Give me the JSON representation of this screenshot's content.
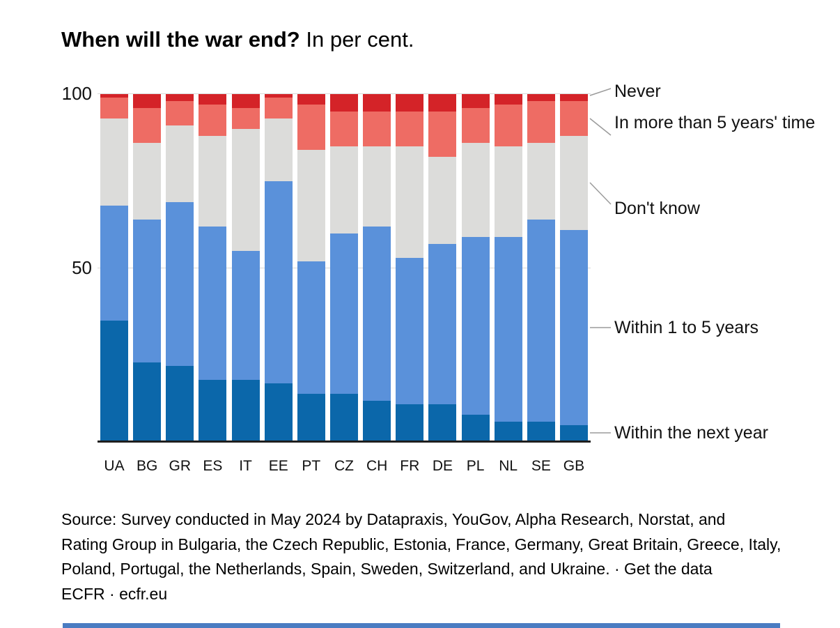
{
  "title": {
    "bold": "When will the war end?",
    "regular": " In per cent."
  },
  "y_axis_labels": {
    "tick100": "100",
    "tick50": "50"
  },
  "chart_data": {
    "type": "bar",
    "stacked": true,
    "title": "When will the war end? In per cent.",
    "ylabel": "per cent",
    "ylim": [
      0,
      100
    ],
    "y_ticks": [
      50,
      100
    ],
    "grid": true,
    "legend_position": "right-annotations",
    "categories": [
      "UA",
      "BG",
      "GR",
      "ES",
      "IT",
      "EE",
      "PT",
      "CZ",
      "CH",
      "FR",
      "DE",
      "PL",
      "NL",
      "SE",
      "GB"
    ],
    "series": [
      {
        "name": "Within the next year",
        "color": "#0b67aa",
        "values": [
          35,
          23,
          22,
          18,
          18,
          17,
          14,
          14,
          12,
          11,
          11,
          8,
          6,
          6,
          5
        ]
      },
      {
        "name": "Within 1 to 5 years",
        "color": "#5a91da",
        "values": [
          33,
          41,
          47,
          44,
          37,
          58,
          38,
          46,
          50,
          42,
          46,
          51,
          53,
          58,
          56
        ]
      },
      {
        "name": "Don't know",
        "color": "#dcdcda",
        "values": [
          25,
          22,
          22,
          26,
          35,
          18,
          32,
          25,
          23,
          32,
          25,
          27,
          26,
          22,
          27
        ]
      },
      {
        "name": "In more than 5 years' time",
        "color": "#ee6c64",
        "values": [
          6,
          10,
          7,
          9,
          6,
          6,
          13,
          10,
          10,
          10,
          13,
          10,
          12,
          12,
          10
        ]
      },
      {
        "name": "Never",
        "color": "#d42328",
        "values": [
          1,
          4,
          2,
          3,
          4,
          1,
          3,
          5,
          5,
          5,
          5,
          4,
          3,
          2,
          2
        ]
      }
    ]
  },
  "annotations": {
    "never": "Never",
    "more_than_5_years": "In more than 5 years' time",
    "dont_know": "Don't know",
    "within_1_to_5_years": "Within 1 to 5 years",
    "within_next_year": "Within the next year"
  },
  "colors": {
    "dark_blue": "#0b67aa",
    "light_blue": "#5a91da",
    "gray": "#dcdcda",
    "salmon": "#ee6c64",
    "red": "#d42328",
    "axis": "#1f1f1f",
    "gridline": "#d9d9d9",
    "leader_line": "#9b9b9b",
    "footer_accent": "#4a7cc2"
  },
  "source": {
    "line1": "Source: Survey conducted in May 2024 by Datapraxis, YouGov, Alpha Research, Norstat, and",
    "line2": "Rating Group in Bulgaria, the Czech Republic, Estonia, France, Germany, Great Britain, Greece, Italy,",
    "line3_text": "Poland, Portugal, the Netherlands, Spain, Sweden, Switzerland, and Ukraine. · ",
    "line3_link": "Get the data",
    "line4_text": "ECFR · ",
    "line4_link": "ecfr.eu"
  }
}
